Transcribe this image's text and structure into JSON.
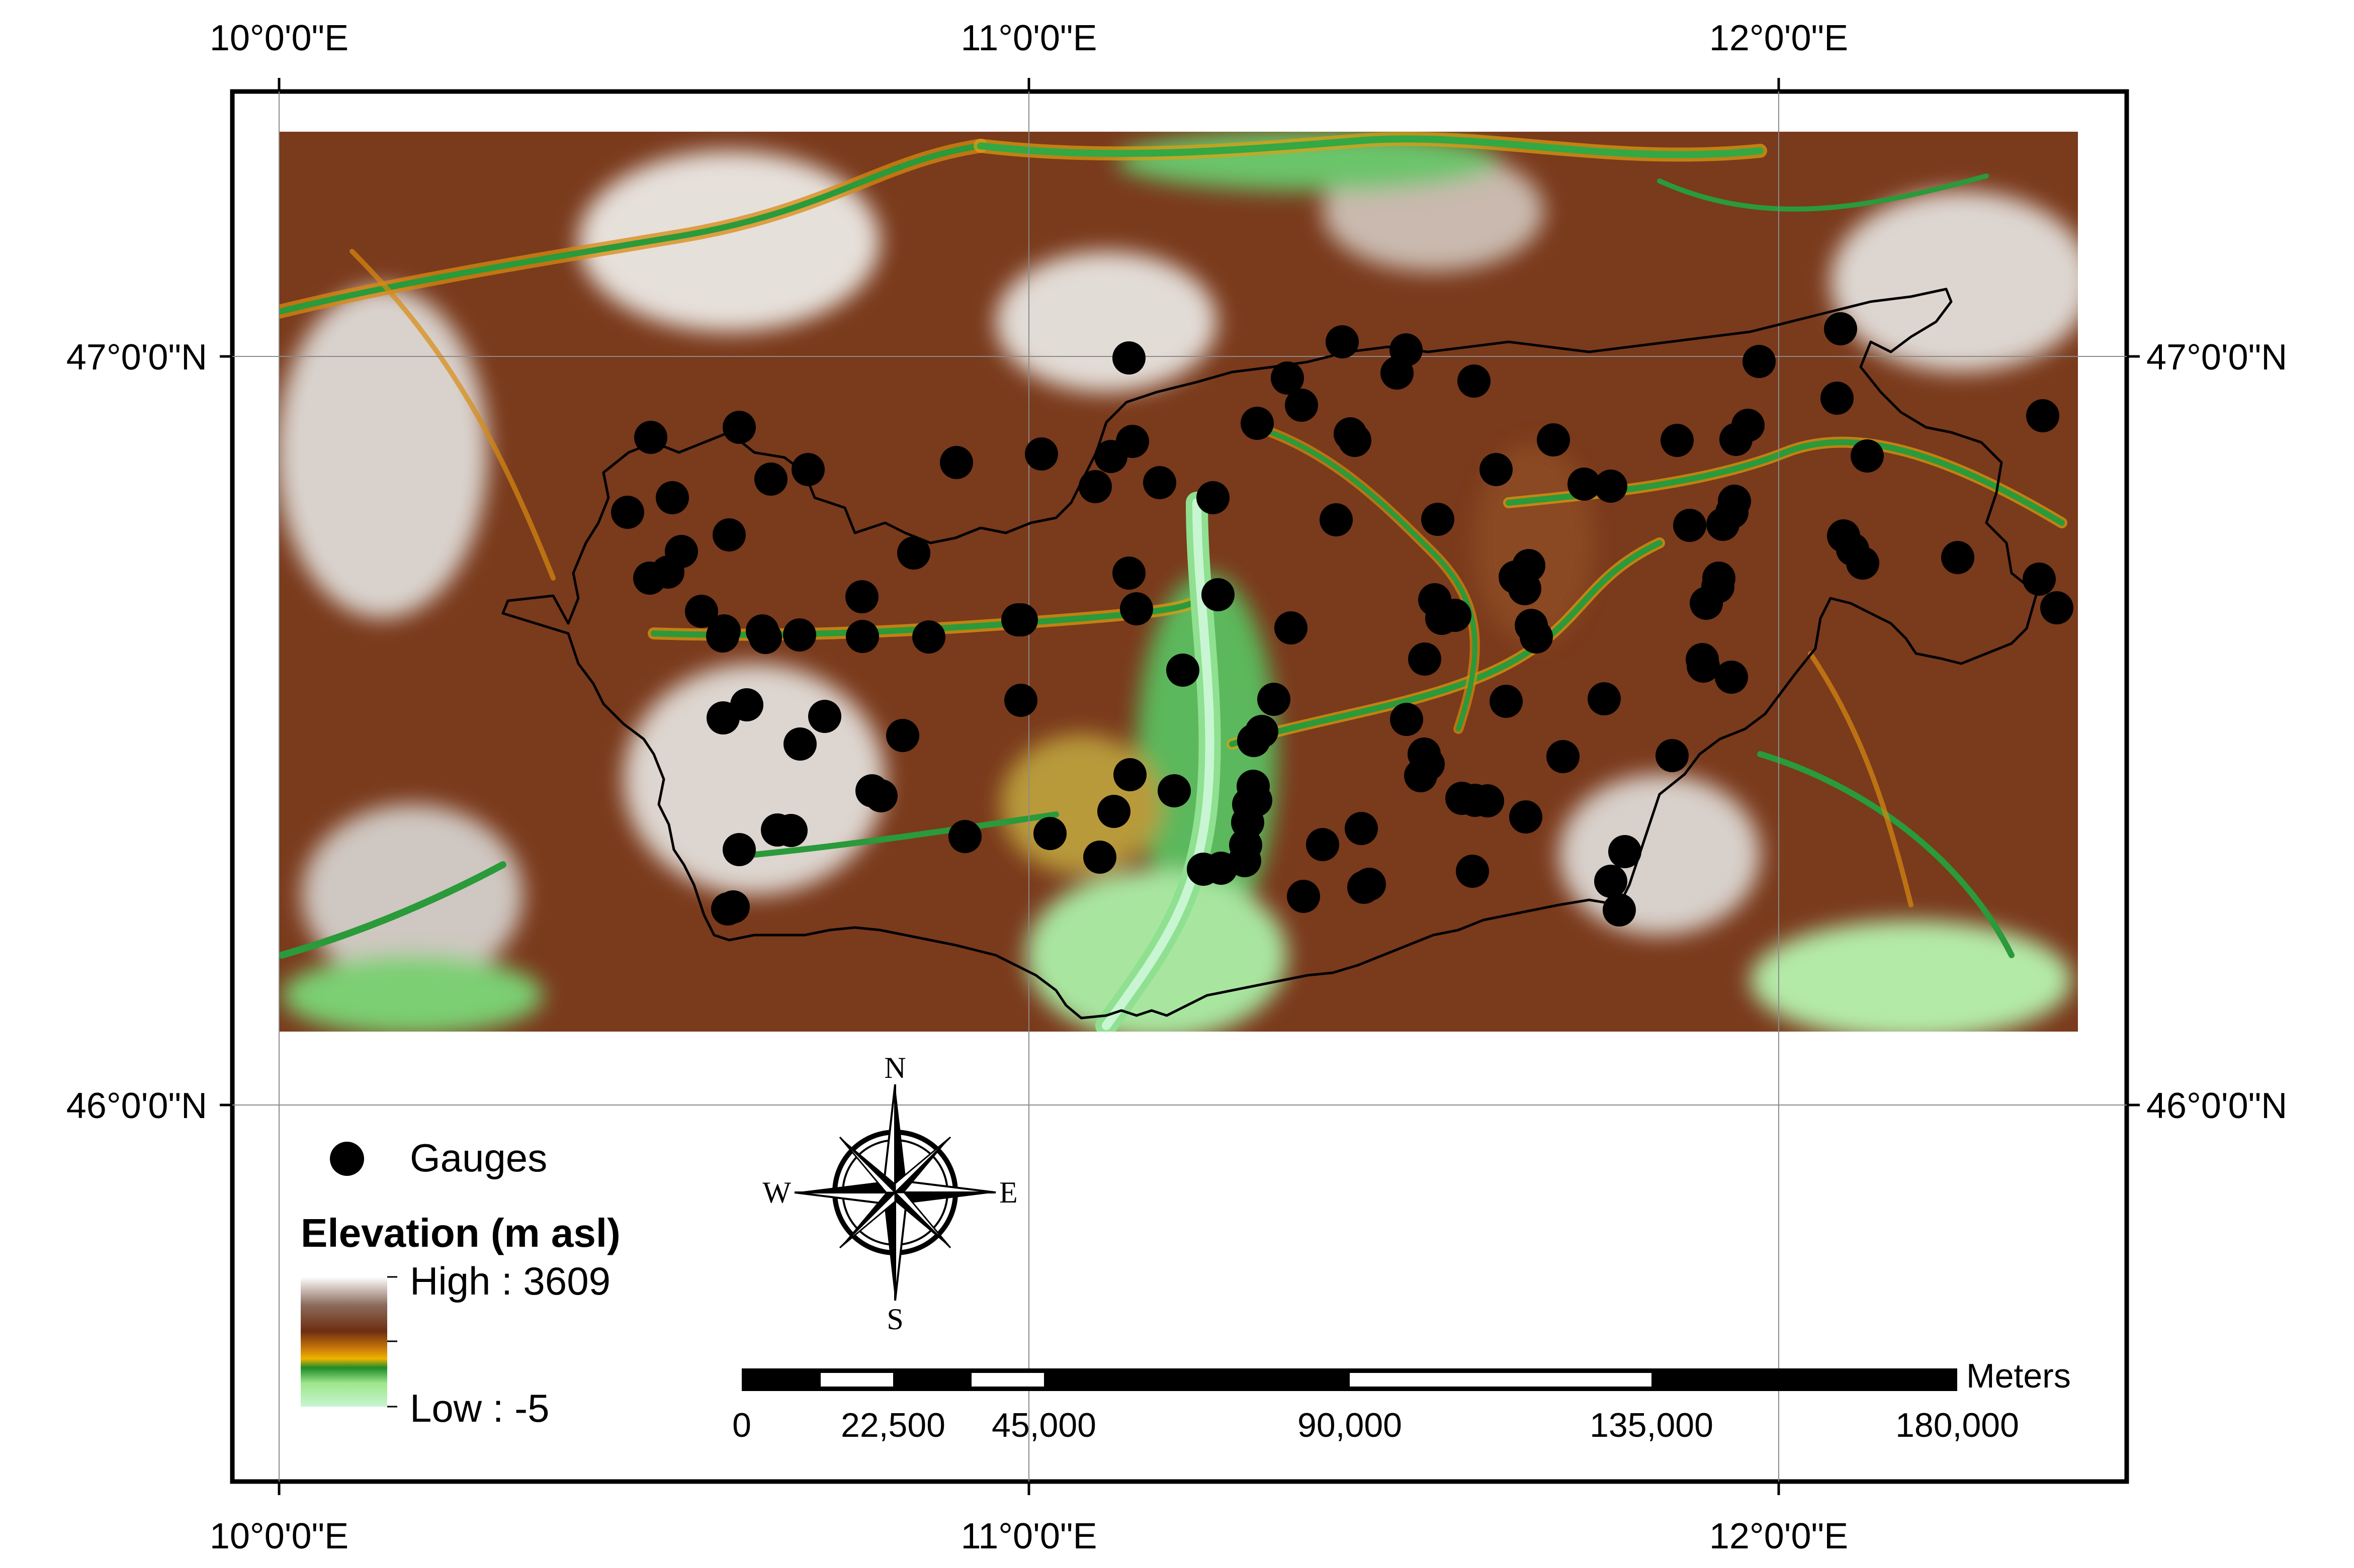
{
  "graticule": {
    "top_labels": [
      "10°0'0\"E",
      "11°0'0\"E",
      "12°0'0\"E"
    ],
    "bottom_labels": [
      "10°0'0\"E",
      "11°0'0\"E",
      "12°0'0\"E"
    ],
    "left_labels": [
      "47°0'0\"N",
      "46°0'0\"N"
    ],
    "right_labels": [
      "47°0'0\"N",
      "46°0'0\"N"
    ]
  },
  "legend": {
    "gauges_label": "Gauges",
    "elevation_title": "Elevation (m asl)",
    "high_label": "High : 3609",
    "low_label": "Low : -5",
    "ramp_colors": [
      "#ffffff",
      "#8a5a3c",
      "#6e2e12",
      "#c8780a",
      "#f0b400",
      "#1e8c28",
      "#9ee68c",
      "#c8f5d2"
    ]
  },
  "north_arrow": {
    "n": "N",
    "s": "S",
    "e": "E",
    "w": "W"
  },
  "scale_bar": {
    "unit": "Meters",
    "ticks": [
      "0",
      "22,500",
      "45,000",
      "90,000",
      "135,000",
      "180,000"
    ]
  },
  "colors": {
    "gauge": "#000000",
    "boundary": "#000000"
  }
}
